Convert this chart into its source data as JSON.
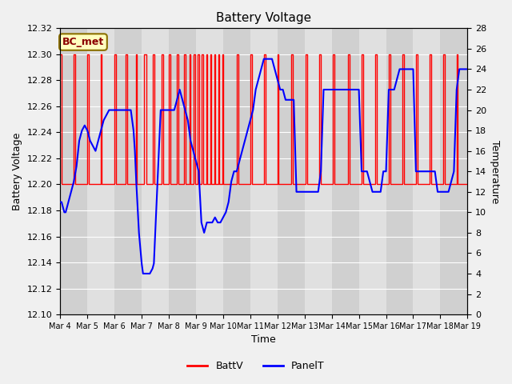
{
  "title": "Battery Voltage",
  "xlabel": "Time",
  "ylabel_left": "Battery Voltage",
  "ylabel_right": "Temperature",
  "annotation": "BC_met",
  "ylim_left": [
    12.1,
    12.32
  ],
  "ylim_right": [
    0,
    28
  ],
  "bg_color": "#f0f0f0",
  "plot_bg_color": "#e8e8e8",
  "grid_color": "white",
  "batt_color": "red",
  "panel_color": "blue",
  "xtick_labels": [
    "Mar 4",
    "Mar 5",
    "Mar 6",
    "Mar 7",
    "Mar 8",
    "Mar 9",
    "Mar 10",
    "Mar 11",
    "Mar 12",
    "Mar 13",
    "Mar 14",
    "Mar 15",
    "Mar 16",
    "Mar 17",
    "Mar 18",
    "Mar 19"
  ],
  "batt_x": [
    0.0,
    0.04,
    0.04,
    0.5,
    0.5,
    0.55,
    0.55,
    1.0,
    1.0,
    1.05,
    1.05,
    1.48,
    1.48,
    1.53,
    1.53,
    2.0,
    2.0,
    2.05,
    2.05,
    2.4,
    2.4,
    2.46,
    2.46,
    2.78,
    2.78,
    2.83,
    2.83,
    3.1,
    3.1,
    3.16,
    3.16,
    3.42,
    3.42,
    3.47,
    3.47,
    3.73,
    3.73,
    3.78,
    3.78,
    4.0,
    4.0,
    4.06,
    4.06,
    4.3,
    4.3,
    4.36,
    4.36,
    4.57,
    4.57,
    4.62,
    4.62,
    4.76,
    4.76,
    4.8,
    4.8,
    4.92,
    4.92,
    4.96,
    4.96,
    5.07,
    5.07,
    5.11,
    5.11,
    5.22,
    5.22,
    5.26,
    5.26,
    5.37,
    5.37,
    5.41,
    5.41,
    5.52,
    5.52,
    5.56,
    5.56,
    5.67,
    5.67,
    5.71,
    5.71,
    5.82,
    5.82,
    5.86,
    5.86,
    5.97,
    5.97,
    6.01,
    6.01,
    6.5,
    6.5,
    6.55,
    6.55,
    7.0,
    7.0,
    7.06,
    7.06,
    7.5,
    7.5,
    7.55,
    7.55,
    8.0,
    8.0,
    8.05,
    8.05,
    8.5,
    8.5,
    8.56,
    8.56,
    9.05,
    9.05,
    9.11,
    9.11,
    9.55,
    9.55,
    9.61,
    9.61,
    10.05,
    10.05,
    10.1,
    10.1,
    10.6,
    10.6,
    10.65,
    10.65,
    11.1,
    11.1,
    11.15,
    11.15,
    11.6,
    11.6,
    11.65,
    11.65,
    12.1,
    12.1,
    12.15,
    12.15,
    12.6,
    12.6,
    12.65,
    12.65,
    13.1,
    13.1,
    13.15,
    13.15,
    13.6,
    13.6,
    13.65,
    13.65,
    14.1,
    14.1,
    14.15,
    14.15,
    14.6,
    14.6,
    14.65,
    14.65,
    15.0
  ],
  "batt_y": [
    12.3,
    12.3,
    12.2,
    12.2,
    12.3,
    12.3,
    12.2,
    12.2,
    12.3,
    12.3,
    12.2,
    12.2,
    12.3,
    12.3,
    12.2,
    12.2,
    12.3,
    12.3,
    12.2,
    12.2,
    12.3,
    12.3,
    12.2,
    12.2,
    12.3,
    12.3,
    12.2,
    12.2,
    12.3,
    12.3,
    12.2,
    12.2,
    12.3,
    12.3,
    12.2,
    12.2,
    12.3,
    12.3,
    12.2,
    12.2,
    12.3,
    12.3,
    12.2,
    12.2,
    12.3,
    12.3,
    12.2,
    12.2,
    12.3,
    12.3,
    12.2,
    12.2,
    12.3,
    12.3,
    12.2,
    12.2,
    12.3,
    12.3,
    12.2,
    12.2,
    12.3,
    12.3,
    12.2,
    12.2,
    12.3,
    12.3,
    12.2,
    12.2,
    12.3,
    12.3,
    12.2,
    12.2,
    12.3,
    12.3,
    12.2,
    12.2,
    12.3,
    12.3,
    12.2,
    12.2,
    12.3,
    12.3,
    12.2,
    12.2,
    12.3,
    12.3,
    12.2,
    12.2,
    12.3,
    12.3,
    12.2,
    12.2,
    12.3,
    12.3,
    12.2,
    12.2,
    12.3,
    12.3,
    12.2,
    12.2,
    12.3,
    12.3,
    12.2,
    12.2,
    12.3,
    12.3,
    12.2,
    12.2,
    12.3,
    12.3,
    12.2,
    12.2,
    12.3,
    12.3,
    12.2,
    12.2,
    12.3,
    12.3,
    12.2,
    12.2,
    12.3,
    12.3,
    12.2,
    12.2,
    12.3,
    12.3,
    12.2,
    12.2,
    12.3,
    12.3,
    12.2,
    12.2,
    12.3,
    12.3,
    12.2,
    12.2,
    12.3,
    12.3,
    12.2,
    12.2,
    12.3,
    12.3,
    12.2,
    12.2,
    12.3,
    12.3,
    12.2,
    12.2,
    12.3,
    12.3,
    12.2,
    12.2,
    12.3,
    12.3,
    12.2,
    12.2
  ],
  "panel_t_x": [
    0.0,
    0.05,
    0.1,
    0.15,
    0.2,
    0.25,
    0.3,
    0.4,
    0.5,
    0.6,
    0.7,
    0.8,
    0.9,
    1.0,
    1.1,
    1.2,
    1.3,
    1.4,
    1.5,
    1.6,
    1.7,
    1.8,
    1.9,
    2.0,
    2.1,
    2.2,
    2.3,
    2.4,
    2.5,
    2.6,
    2.7,
    2.75,
    2.8,
    2.9,
    3.0,
    3.05,
    3.1,
    3.15,
    3.2,
    3.3,
    3.4,
    3.45,
    3.5,
    3.6,
    3.7,
    3.8,
    3.9,
    4.0,
    4.1,
    4.2,
    4.3,
    4.4,
    4.5,
    4.6,
    4.7,
    4.8,
    4.9,
    5.0,
    5.1,
    5.2,
    5.3,
    5.4,
    5.5,
    5.6,
    5.7,
    5.8,
    5.9,
    6.0,
    6.1,
    6.2,
    6.3,
    6.4,
    6.5,
    6.6,
    6.7,
    6.8,
    6.9,
    7.0,
    7.1,
    7.2,
    7.3,
    7.4,
    7.5,
    7.6,
    7.7,
    7.8,
    7.9,
    8.0,
    8.1,
    8.2,
    8.3,
    8.4,
    8.5,
    8.6,
    8.7,
    8.8,
    8.9,
    9.0,
    9.1,
    9.2,
    9.3,
    9.5,
    9.6,
    9.7,
    9.8,
    9.9,
    10.0,
    10.1,
    10.2,
    10.3,
    10.5,
    10.6,
    10.7,
    10.8,
    10.9,
    11.0,
    11.1,
    11.2,
    11.3,
    11.5,
    11.6,
    11.7,
    11.8,
    11.9,
    12.0,
    12.1,
    12.2,
    12.3,
    12.5,
    12.6,
    12.7,
    12.8,
    12.9,
    13.0,
    13.1,
    13.2,
    13.3,
    13.5,
    13.6,
    13.7,
    13.8,
    13.9,
    14.0,
    14.1,
    14.2,
    14.3,
    14.5,
    14.6,
    14.7,
    14.8,
    14.9,
    15.0
  ],
  "panel_t_y": [
    11,
    11,
    10.5,
    10,
    10,
    10.5,
    11,
    12,
    13,
    14.5,
    17,
    18,
    18.5,
    18,
    17,
    16.5,
    16,
    17,
    18,
    19,
    19.5,
    20,
    20,
    20,
    20,
    20,
    20,
    20,
    20,
    20,
    18,
    16,
    13,
    8,
    5,
    4,
    4,
    4,
    4,
    4,
    4.5,
    5,
    8,
    14,
    20,
    20,
    20,
    20,
    20,
    20,
    21,
    22,
    21,
    20,
    19,
    17,
    16,
    15,
    14,
    9,
    8,
    9,
    9,
    9,
    9.5,
    9,
    9,
    9.5,
    10,
    11,
    13,
    14,
    14,
    15,
    16,
    17,
    18,
    19,
    20,
    22,
    23,
    24,
    25,
    25,
    25,
    25,
    24,
    23,
    22,
    22,
    21,
    21,
    21,
    21,
    12,
    12,
    12,
    12,
    12,
    12,
    12,
    12,
    14,
    22,
    22,
    22,
    22,
    22,
    22,
    22,
    22,
    22,
    22,
    22,
    22,
    22,
    14,
    14,
    14,
    12,
    12,
    12,
    12,
    14,
    14,
    22,
    22,
    22,
    24,
    24,
    24,
    24,
    24,
    24,
    14,
    14,
    14,
    14,
    14,
    14,
    14,
    12,
    12,
    12,
    12,
    12,
    14,
    22,
    24,
    24,
    24,
    24
  ],
  "band_colors": [
    "#d0d0d0",
    "#e0e0e0"
  ],
  "title_fontsize": 11,
  "axis_label_fontsize": 9,
  "tick_fontsize": 8
}
